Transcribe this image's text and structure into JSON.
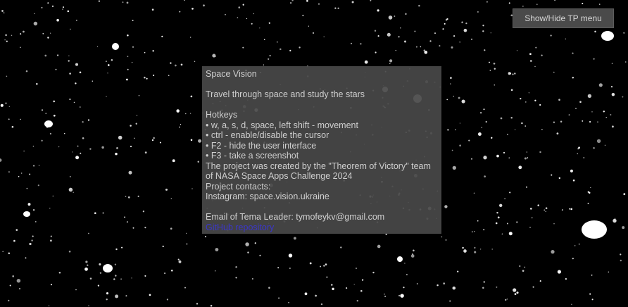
{
  "tp_menu": {
    "button_label": "Show/Hide TP menu"
  },
  "panel": {
    "title": "Space Vision",
    "tagline": "Travel through space and study the stars",
    "hotkeys_heading": "Hotkeys",
    "hotkeys": [
      "• w, a, s, d, space, left shift - movement",
      "• ctrl - enable/disable the cursor",
      "• F2 - hide the user interface",
      "• F3 - take a screenshot"
    ],
    "credits": "The project was created by the \"Theorem of Victory\" team of NASA Space Apps Challenge 2024",
    "contacts_heading": "Project contacts:",
    "instagram": "Instagram: space.vision.ukraine",
    "email": "Email of Tema Leader: tymofeykv@gmail.com",
    "github_link": "GitHub repository"
  },
  "colors": {
    "background": "#000000",
    "panel": "#484848",
    "link": "#3b36c9",
    "star": "#ffffff"
  }
}
